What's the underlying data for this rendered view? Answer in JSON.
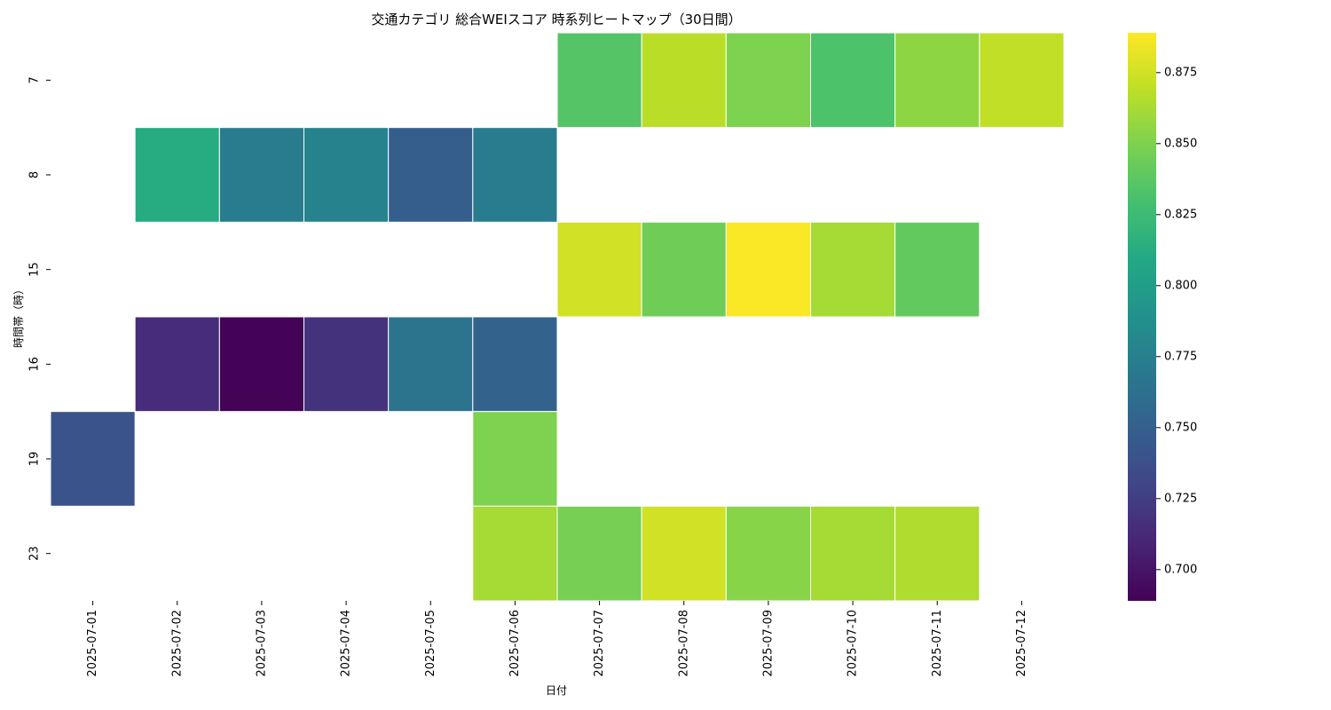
{
  "chart_data": {
    "type": "heatmap",
    "title": "交通カテゴリ 総合WEIスコア 時系列ヒートマップ（30日間）",
    "xlabel": "日付",
    "ylabel": "時間帯（時）",
    "x_categories": [
      "2025-07-01",
      "2025-07-02",
      "2025-07-03",
      "2025-07-04",
      "2025-07-05",
      "2025-07-06",
      "2025-07-07",
      "2025-07-08",
      "2025-07-09",
      "2025-07-10",
      "2025-07-11",
      "2025-07-12"
    ],
    "y_categories": [
      "7",
      "8",
      "15",
      "16",
      "19",
      "23"
    ],
    "values": [
      [
        null,
        null,
        null,
        null,
        null,
        null,
        0.835,
        0.868,
        0.85,
        0.832,
        0.855,
        0.87
      ],
      [
        null,
        0.812,
        0.772,
        0.778,
        0.748,
        0.771,
        null,
        null,
        null,
        null,
        null,
        null
      ],
      [
        null,
        null,
        null,
        null,
        null,
        null,
        0.875,
        0.845,
        0.888,
        0.862,
        0.84,
        null
      ],
      [
        null,
        0.714,
        0.69,
        0.718,
        0.765,
        0.752,
        null,
        null,
        null,
        null,
        null,
        null
      ],
      [
        0.74,
        null,
        null,
        null,
        null,
        0.85,
        null,
        null,
        null,
        null,
        null,
        null
      ],
      [
        null,
        null,
        null,
        null,
        null,
        0.862,
        0.848,
        0.875,
        0.853,
        0.862,
        0.865,
        null
      ]
    ],
    "colormap": "viridis",
    "vmin": 0.689,
    "vmax": 0.889,
    "colorbar_ticks": [
      {
        "value": 0.7,
        "label": "0.700"
      },
      {
        "value": 0.725,
        "label": "0.725"
      },
      {
        "value": 0.75,
        "label": "0.750"
      },
      {
        "value": 0.775,
        "label": "0.775"
      },
      {
        "value": 0.8,
        "label": "0.800"
      },
      {
        "value": 0.825,
        "label": "0.825"
      },
      {
        "value": 0.85,
        "label": "0.850"
      },
      {
        "value": 0.875,
        "label": "0.875"
      }
    ],
    "grid": false,
    "legend": "colorbar-right"
  }
}
